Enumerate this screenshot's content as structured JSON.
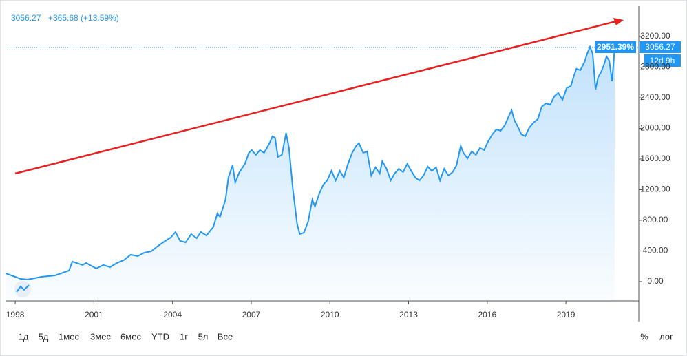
{
  "chart_data": {
    "type": "area",
    "header": [
      "3056.27",
      "+365.68 (+13.59%)"
    ],
    "badges": [
      "2951.39%",
      "3056.27",
      "12d 9h"
    ],
    "color": "#2196f3",
    "x": [
      1997.63,
      1998.0,
      1998.21,
      1998.47,
      1999.0,
      1999.52,
      2000.05,
      2000.18,
      2000.57,
      2000.7,
      2001.09,
      2001.36,
      2001.62,
      2001.88,
      2002.14,
      2002.4,
      2002.67,
      2002.93,
      2003.19,
      2003.45,
      2003.72,
      2003.93,
      2004.11,
      2004.29,
      2004.5,
      2004.71,
      2004.92,
      2005.08,
      2005.29,
      2005.55,
      2005.71,
      2005.81,
      2006.02,
      2006.13,
      2006.29,
      2006.39,
      2006.55,
      2006.76,
      2006.91,
      2007.02,
      2007.18,
      2007.33,
      2007.49,
      2007.7,
      2007.81,
      2007.91,
      2008.02,
      2008.17,
      2008.33,
      2008.44,
      2008.59,
      2008.75,
      2008.85,
      2009.01,
      2009.17,
      2009.33,
      2009.43,
      2009.59,
      2009.75,
      2009.9,
      2010.06,
      2010.22,
      2010.38,
      2010.53,
      2010.69,
      2010.85,
      2011.0,
      2011.11,
      2011.27,
      2011.42,
      2011.58,
      2011.74,
      2011.9,
      2012.0,
      2012.16,
      2012.32,
      2012.47,
      2012.63,
      2012.79,
      2012.95,
      2013.1,
      2013.26,
      2013.42,
      2013.57,
      2013.73,
      2013.89,
      2014.05,
      2014.2,
      2014.36,
      2014.52,
      2014.68,
      2014.83,
      2014.99,
      2015.09,
      2015.25,
      2015.41,
      2015.57,
      2015.72,
      2015.88,
      2016.04,
      2016.2,
      2016.35,
      2016.51,
      2016.67,
      2016.83,
      2016.93,
      2017.04,
      2017.14,
      2017.3,
      2017.45,
      2017.61,
      2017.77,
      2017.93,
      2018.08,
      2018.24,
      2018.4,
      2018.56,
      2018.71,
      2018.87,
      2019.03,
      2019.19,
      2019.29,
      2019.4,
      2019.55,
      2019.71,
      2019.81,
      2019.92,
      2020.02,
      2020.13,
      2020.23,
      2020.34,
      2020.44,
      2020.55,
      2020.65,
      2020.76,
      2020.86
    ],
    "values": [
      108,
      63,
      36,
      27,
      63,
      81,
      144,
      261,
      216,
      243,
      171,
      216,
      189,
      243,
      279,
      351,
      333,
      378,
      396,
      467,
      530,
      575,
      647,
      530,
      512,
      620,
      566,
      647,
      602,
      710,
      890,
      845,
      1070,
      1357,
      1519,
      1294,
      1429,
      1537,
      1681,
      1717,
      1654,
      1717,
      1681,
      1807,
      1897,
      1879,
      1627,
      1654,
      1942,
      1744,
      1204,
      755,
      620,
      638,
      782,
      1070,
      980,
      1142,
      1267,
      1321,
      1447,
      1321,
      1447,
      1357,
      1537,
      1681,
      1771,
      1807,
      1681,
      1699,
      1384,
      1492,
      1411,
      1573,
      1474,
      1321,
      1411,
      1474,
      1429,
      1537,
      1447,
      1357,
      1321,
      1384,
      1501,
      1447,
      1492,
      1321,
      1474,
      1384,
      1429,
      1519,
      1771,
      1681,
      1609,
      1699,
      1654,
      1744,
      1717,
      1834,
      1924,
      1987,
      1969,
      2040,
      2166,
      2238,
      2103,
      2040,
      1924,
      1897,
      2013,
      2076,
      2121,
      2283,
      2328,
      2310,
      2418,
      2463,
      2373,
      2526,
      2553,
      2670,
      2778,
      2760,
      2867,
      2975,
      3065,
      2975,
      2508,
      2670,
      2733,
      2822,
      2939,
      2885,
      2616,
      3056.27
    ],
    "xlim": [
      1997.63,
      2021.78
    ],
    "xticks": [
      1998,
      2001,
      2004,
      2007,
      2010,
      2013,
      2016,
      2019
    ],
    "ylim": [
      -252,
      3604
    ],
    "yticks": [
      {
        "value": 0,
        "label": "0.00"
      },
      {
        "value": 400,
        "label": "400.00"
      },
      {
        "value": 800,
        "label": "800.00"
      },
      {
        "value": 1200,
        "label": "1200.00"
      },
      {
        "value": 1600,
        "label": "1600.00"
      },
      {
        "value": 2000,
        "label": "2000.00"
      },
      {
        "value": 2400,
        "label": "2400.00"
      },
      {
        "value": 2800,
        "label": "2800.00"
      },
      {
        "value": 3200,
        "label": "3200.00"
      }
    ]
  },
  "toolbar": {
    "ranges": [
      "1д",
      "5д",
      "1мес",
      "3мес",
      "6мес",
      "YTD",
      "1г",
      "5л",
      "Все"
    ],
    "options": [
      "%",
      "лог"
    ]
  }
}
